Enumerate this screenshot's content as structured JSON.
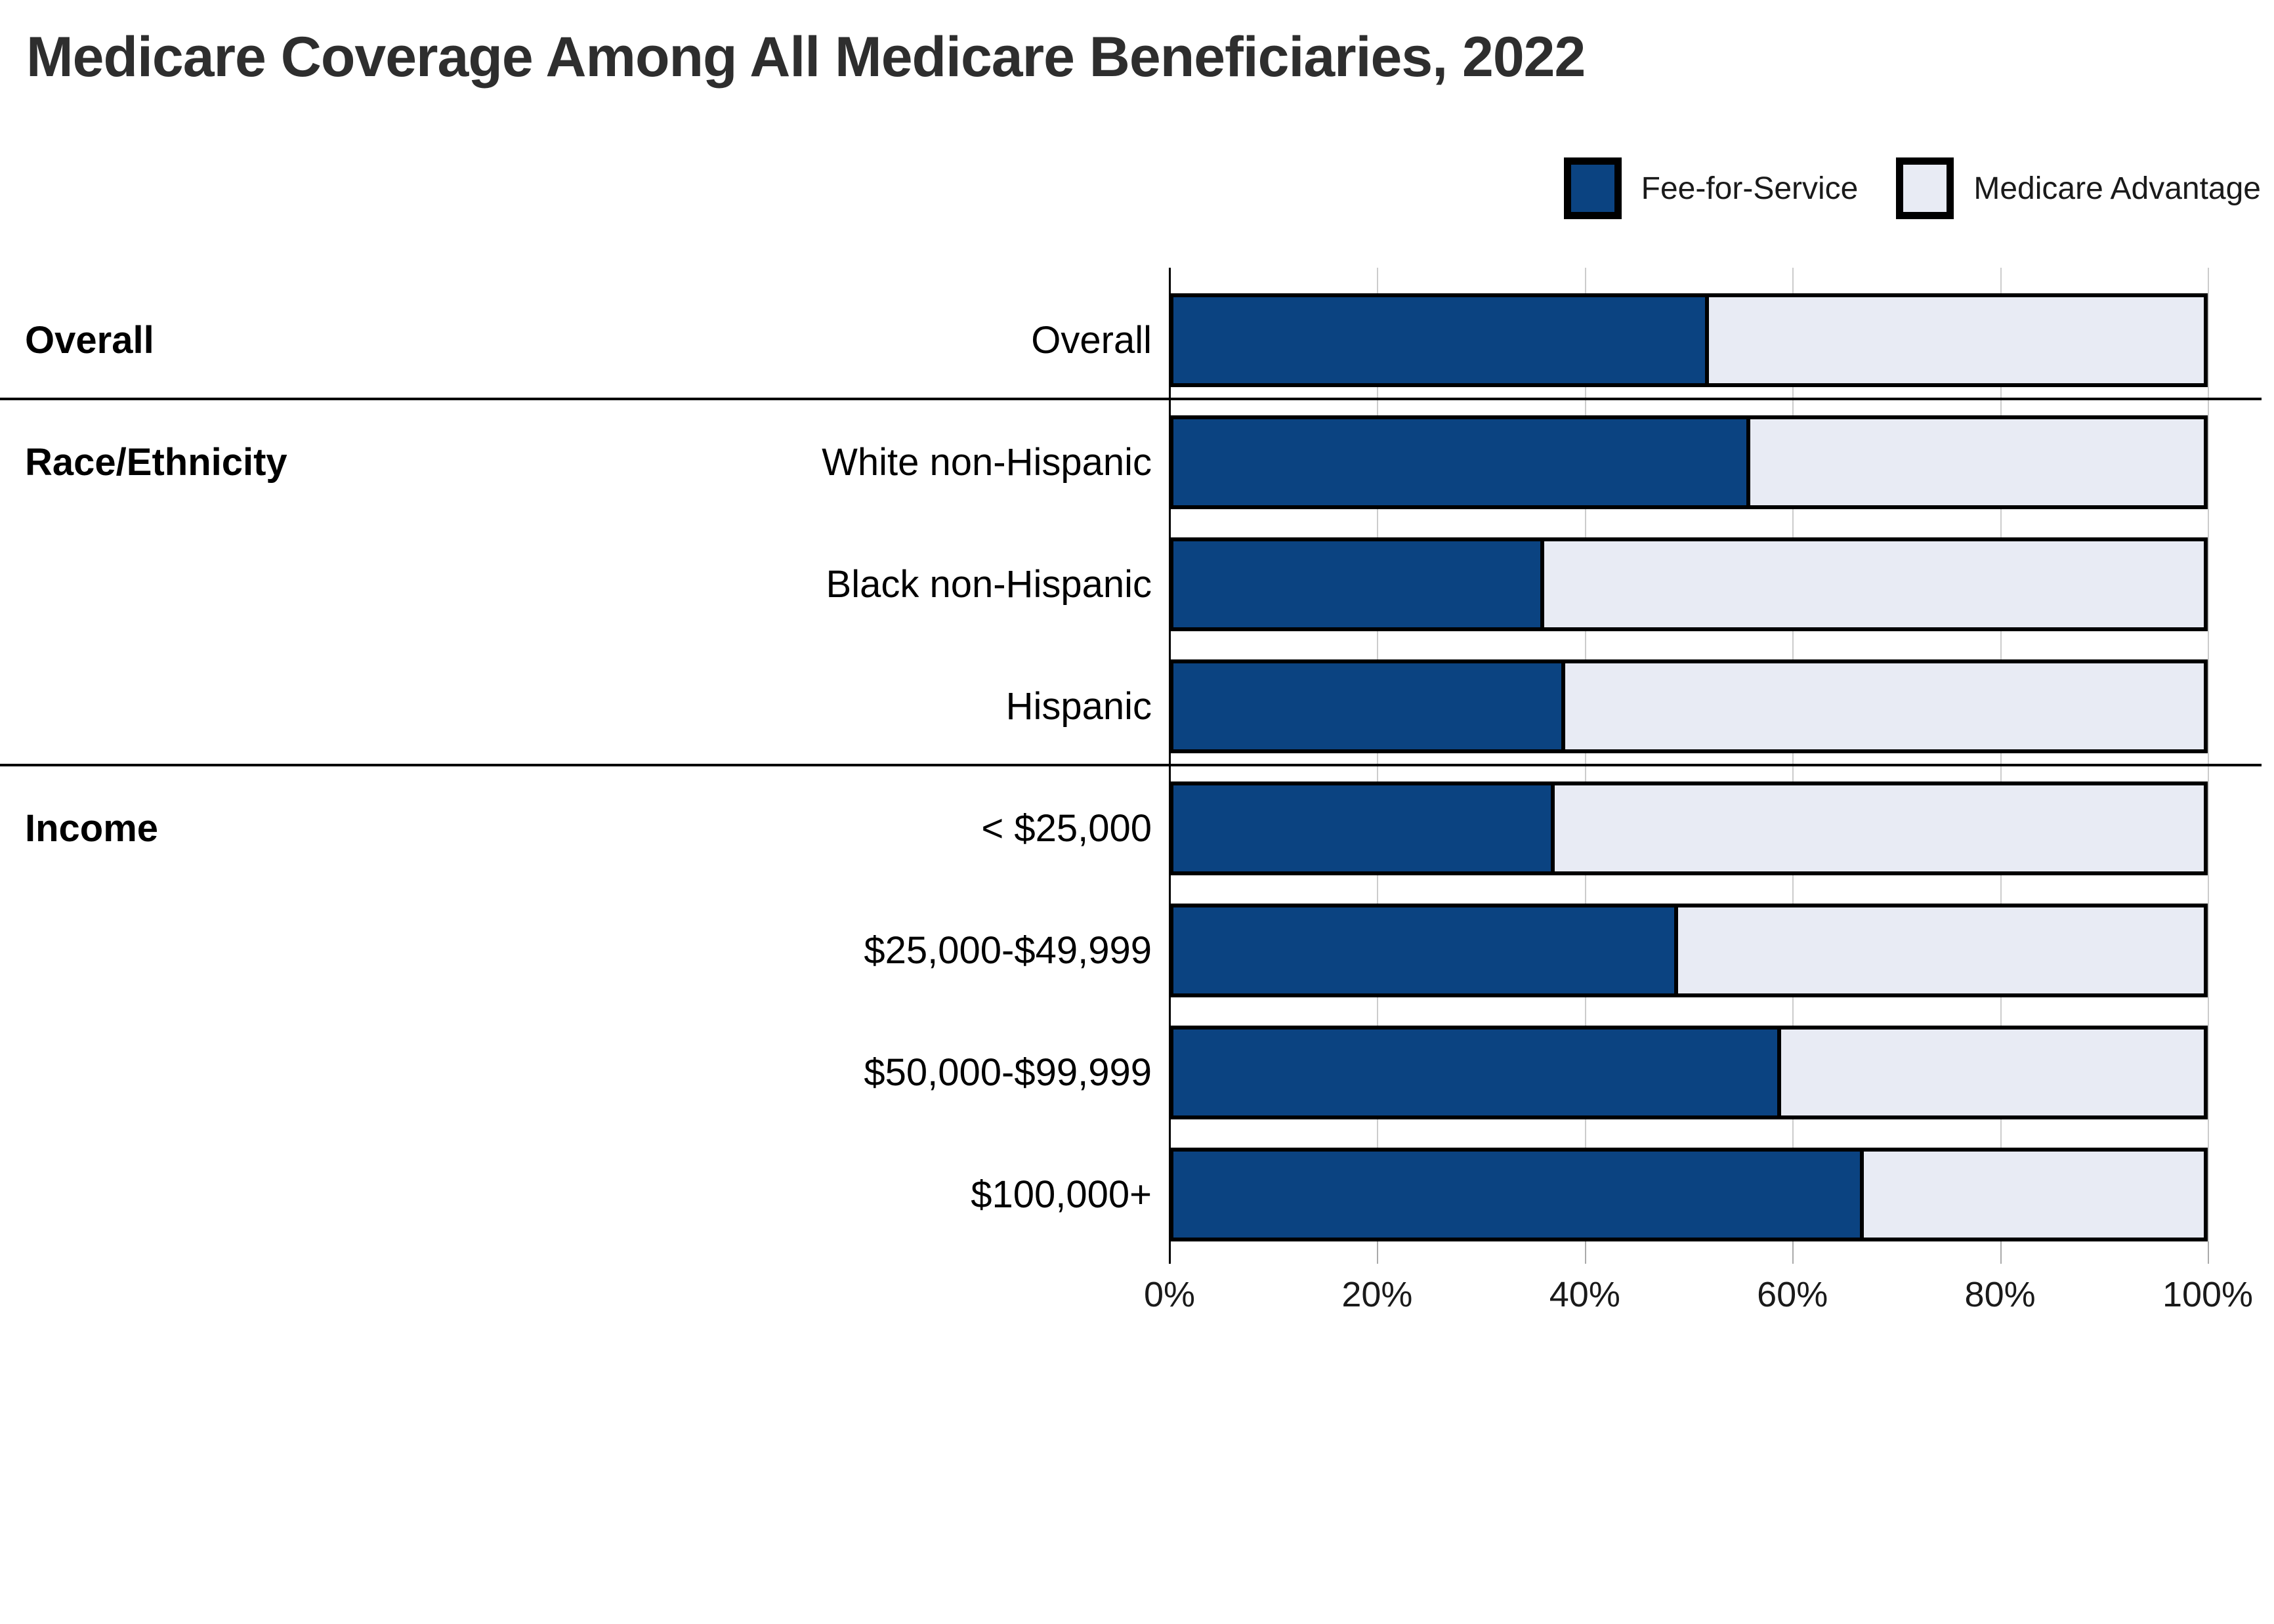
{
  "title": "Medicare Coverage Among All Medicare Beneficiaries, 2022",
  "legend": {
    "items": [
      {
        "name": "Fee-for-Service",
        "color": "#0B4381"
      },
      {
        "name": "Medicare Advantage",
        "color": "#E8EBF4"
      }
    ]
  },
  "colors": {
    "fee_for_service": "#0B4381",
    "medicare_advantage": "#E8EBF4",
    "bar_border": "#000000",
    "gridline": "#cccccc",
    "axis": "#000000",
    "title_text": "#2e2e2e",
    "label_text": "#000000"
  },
  "chart_data": {
    "type": "bar",
    "orientation": "horizontal",
    "stacked": true,
    "title": "Medicare Coverage Among All Medicare Beneficiaries, 2022",
    "xlabel": "",
    "ylabel": "",
    "xlim": [
      0,
      100
    ],
    "x_axis": {
      "ticks": [
        "0%",
        "20%",
        "40%",
        "60%",
        "80%",
        "100%"
      ],
      "tick_values": [
        0,
        20,
        40,
        60,
        80,
        100
      ],
      "grid": true
    },
    "legend_position": "top-right",
    "categories": [
      "Overall",
      "White non-Hispanic",
      "Black non-Hispanic",
      "Hispanic",
      "< $25,000",
      "$25,000-$49,999",
      "$50,000-$99,999",
      "$100,000+"
    ],
    "series": [
      {
        "name": "Fee-for-Service",
        "values": [
          52,
          56,
          36,
          38,
          37,
          49,
          59,
          67
        ]
      },
      {
        "name": "Medicare Advantage",
        "values": [
          48,
          44,
          64,
          62,
          63,
          51,
          41,
          33
        ]
      }
    ],
    "sections": [
      {
        "header": "Overall",
        "rows": [
          {
            "label": "Overall",
            "fee_for_service": 52,
            "medicare_advantage": 48
          }
        ]
      },
      {
        "header": "Race/Ethnicity",
        "rows": [
          {
            "label": "White non-Hispanic",
            "fee_for_service": 56,
            "medicare_advantage": 44
          },
          {
            "label": "Black non-Hispanic",
            "fee_for_service": 36,
            "medicare_advantage": 64
          },
          {
            "label": "Hispanic",
            "fee_for_service": 38,
            "medicare_advantage": 62
          }
        ]
      },
      {
        "header": "Income",
        "rows": [
          {
            "label": "< $25,000",
            "fee_for_service": 37,
            "medicare_advantage": 63
          },
          {
            "label": "$25,000-$49,999",
            "fee_for_service": 49,
            "medicare_advantage": 51
          },
          {
            "label": "$50,000-$99,999",
            "fee_for_service": 59,
            "medicare_advantage": 41
          },
          {
            "label": "$100,000+",
            "fee_for_service": 67,
            "medicare_advantage": 33
          }
        ]
      }
    ]
  }
}
